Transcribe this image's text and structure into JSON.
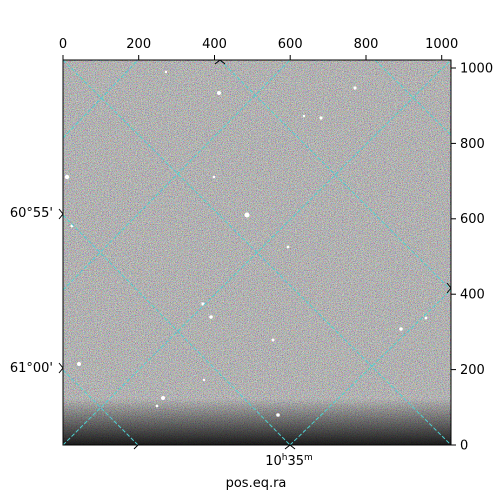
{
  "axes": {
    "top_ticks": [
      "0",
      "200",
      "400",
      "600",
      "800",
      "1000"
    ],
    "right_ticks": [
      "0",
      "200",
      "400",
      "600",
      "800",
      "1000"
    ],
    "left_ticks": [
      "60°55'",
      "61°00'"
    ],
    "bottom_ticks": [
      "10h35m"
    ],
    "bottom_label": "pos.eq.ra"
  },
  "colors": {
    "grid": "#4fd1d1",
    "frame": "#000000",
    "background_noise_light": "#ffffff",
    "background_noise_dark": "#000000"
  }
}
